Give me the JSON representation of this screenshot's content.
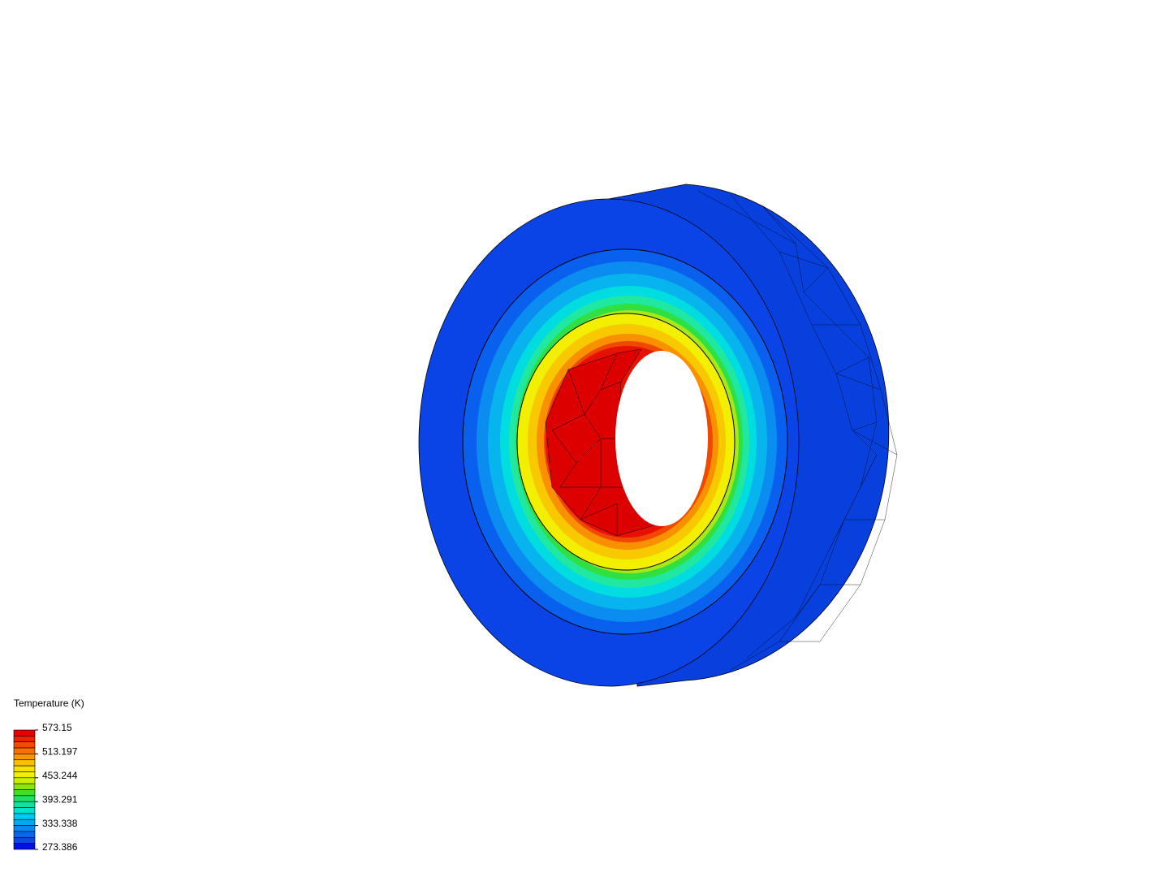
{
  "legend": {
    "title": "Temperature (K)",
    "ticks": [
      573.15,
      513.197,
      453.244,
      393.291,
      333.338,
      273.386
    ]
  }
}
